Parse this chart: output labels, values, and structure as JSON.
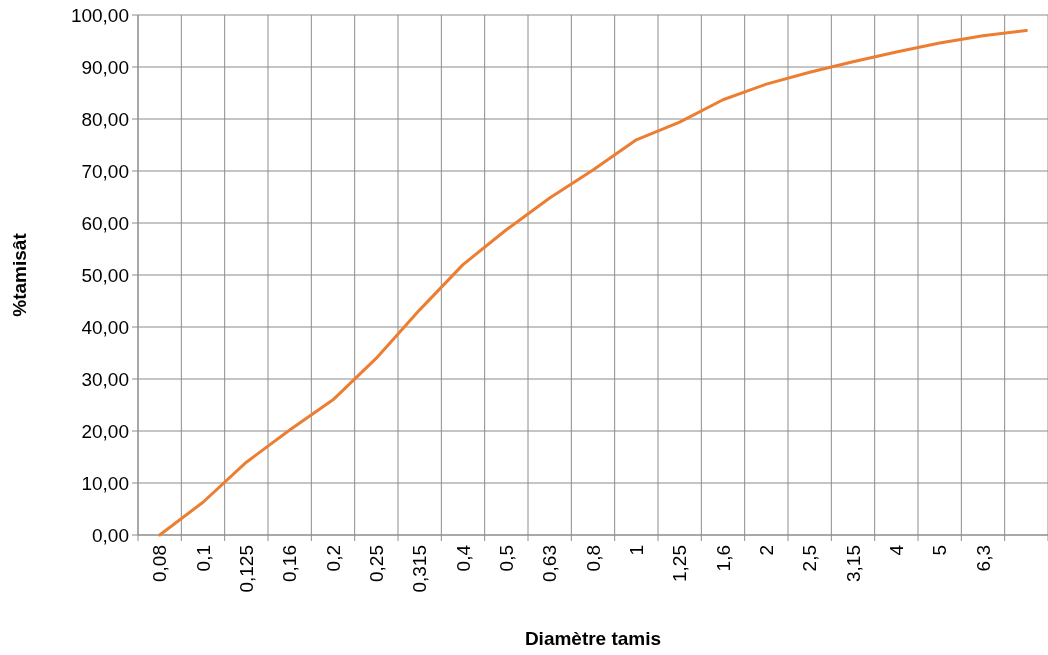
{
  "chart_data": {
    "type": "line",
    "xlabel": "Diamètre tamis",
    "ylabel": "%tamisât",
    "categories": [
      "0,08",
      "0,1",
      "0,125",
      "0,16",
      "0,2",
      "0,25",
      "0,315",
      "0,4",
      "0,5",
      "0,63",
      "0,8",
      "1",
      "1,25",
      "1,6",
      "2",
      "2,5",
      "3,15",
      "4",
      "5",
      "6,3",
      null
    ],
    "series": [
      {
        "color": "#ed7d31",
        "values": [
          0,
          6.3,
          14,
          20.2,
          26,
          34,
          43.3,
          52,
          58.7,
          64.8,
          70.2,
          76,
          79.4,
          83.7,
          86.7,
          89,
          91,
          92.9,
          94.6,
          96,
          97
        ]
      }
    ],
    "ylim": [
      0,
      100
    ],
    "yticks": [
      {
        "value": 0,
        "label": "0,00"
      },
      {
        "value": 10,
        "label": "10,00"
      },
      {
        "value": 20,
        "label": "20,00"
      },
      {
        "value": 30,
        "label": "30,00"
      },
      {
        "value": 40,
        "label": "40,00"
      },
      {
        "value": 50,
        "label": "50,00"
      },
      {
        "value": 60,
        "label": "60,00"
      },
      {
        "value": 70,
        "label": "70,00"
      },
      {
        "value": 80,
        "label": "80,00"
      },
      {
        "value": 90,
        "label": "90,00"
      },
      {
        "value": 100,
        "label": "100,00"
      }
    ],
    "grid": true
  }
}
